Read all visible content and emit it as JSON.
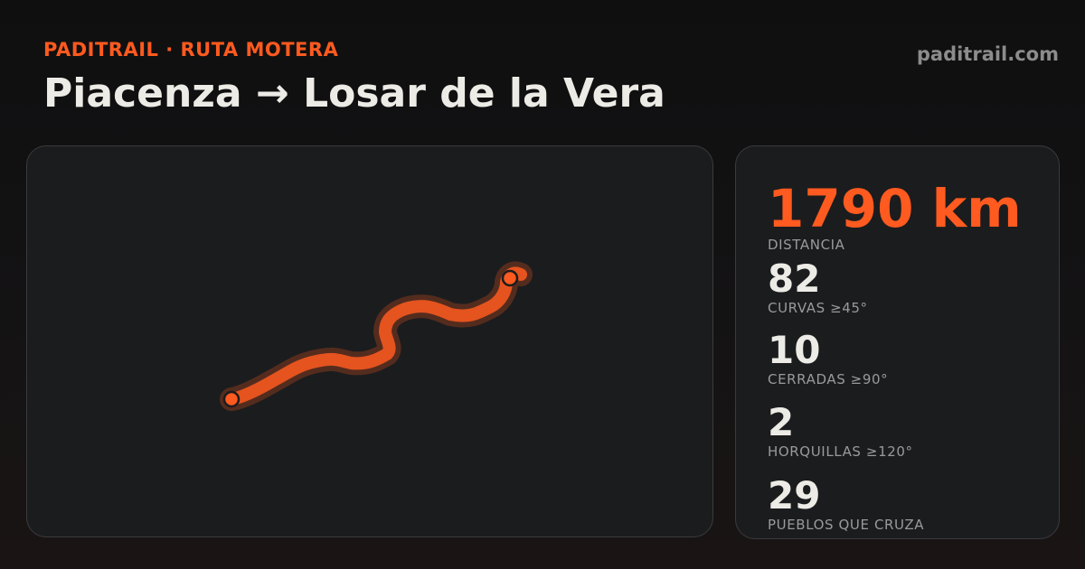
{
  "header": {
    "kicker": "PADITRAIL · RUTA MOTERA",
    "title": "Piacenza → Losar de la Vera",
    "domain": "paditrail.com"
  },
  "map": {
    "route_color": "#ff5a1f",
    "marker_color": "#ff5a1f"
  },
  "stats": [
    {
      "value": "1790 km",
      "label": "DISTANCIA"
    },
    {
      "value": "82",
      "label": "CURVAS ≥45°"
    },
    {
      "value": "10",
      "label": "CERRADAS ≥90°"
    },
    {
      "value": "2",
      "label": "HORQUILLAS ≥120°"
    },
    {
      "value": "29",
      "label": "PUEBLOS QUE CRUZA"
    }
  ],
  "colors": {
    "accent": "#ff5a1f",
    "background": "#141314",
    "panel": "#1b1c1e",
    "text": "#ecebe6",
    "muted": "#9a9a9a"
  }
}
